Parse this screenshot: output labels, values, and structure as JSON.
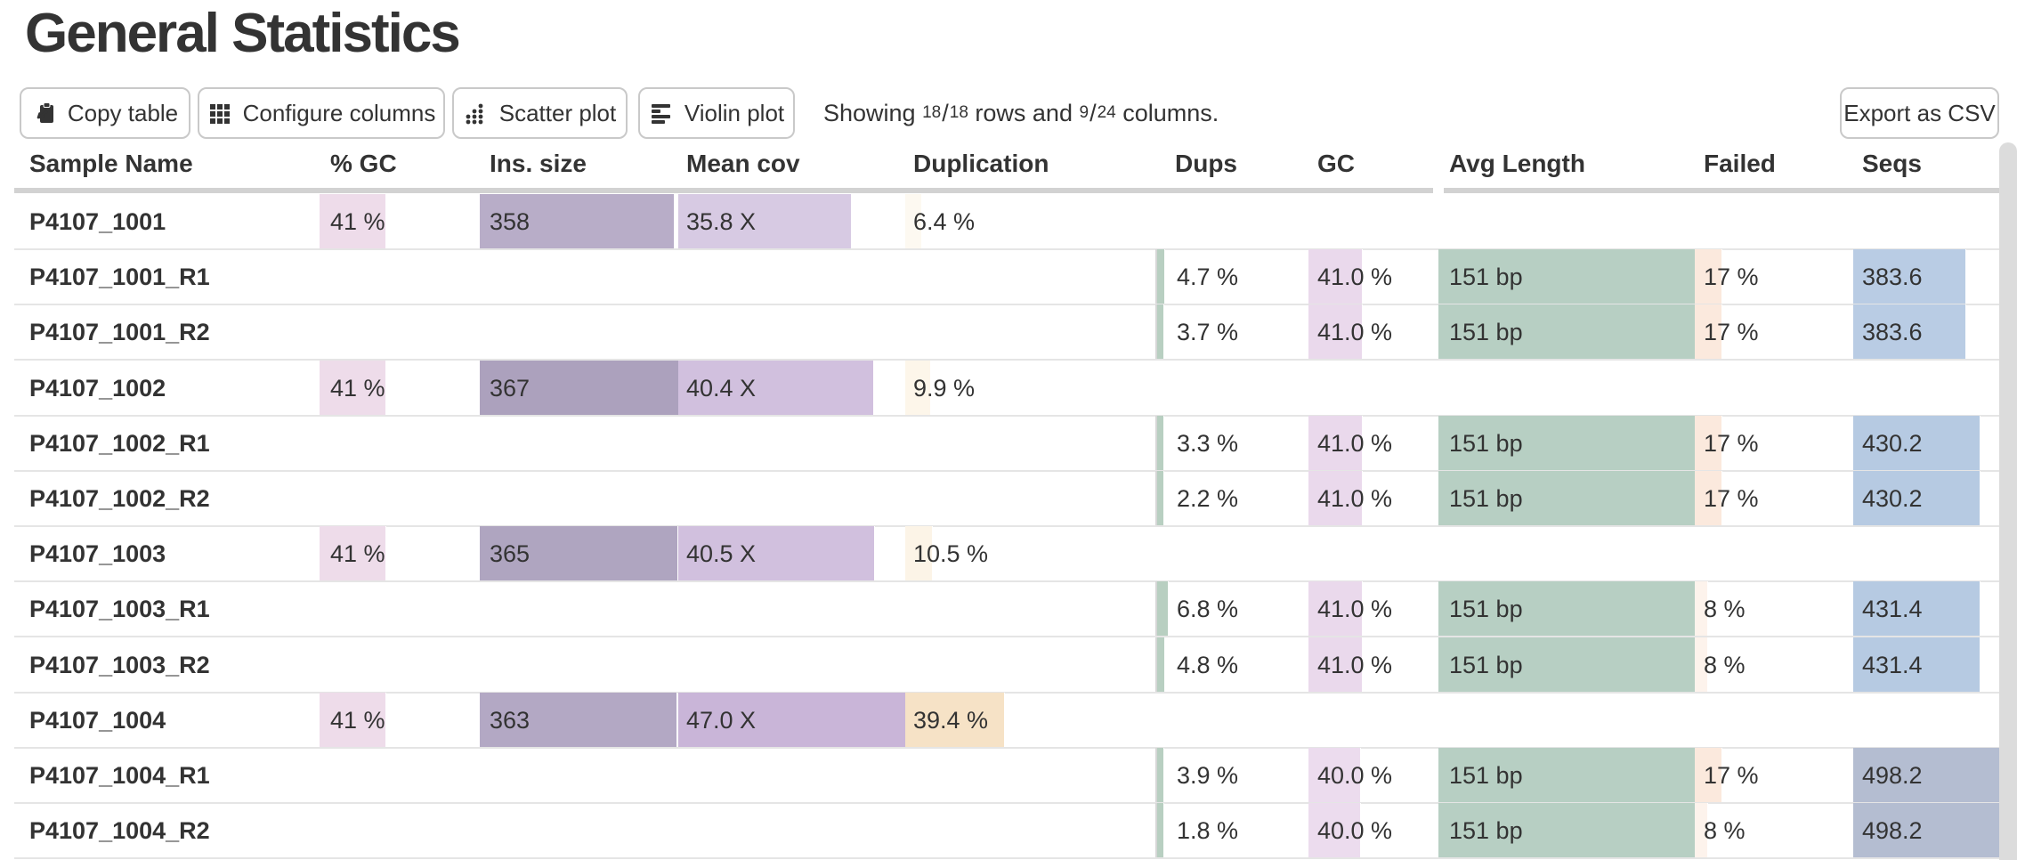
{
  "title": "General Statistics",
  "toolbar": {
    "buttons": [
      {
        "label": "Copy table",
        "icon": "clipboard-icon"
      },
      {
        "label": "Configure columns",
        "icon": "grid-icon"
      },
      {
        "label": "Scatter plot",
        "icon": "scatter-icon"
      },
      {
        "label": "Violin plot",
        "icon": "violin-icon"
      }
    ],
    "export_label": "Export as CSV",
    "showing": {
      "prefix": "Showing",
      "rows_shown": "18",
      "rows_total": "18",
      "middle": "rows and",
      "cols_shown": "9",
      "cols_total": "24",
      "suffix": "columns."
    }
  },
  "table": {
    "columns": [
      {
        "id": "sample",
        "label": "Sample Name"
      },
      {
        "id": "gc_pct",
        "label": "% GC"
      },
      {
        "id": "ins_size",
        "label": "Ins. size"
      },
      {
        "id": "mean_cov",
        "label": "Mean cov"
      },
      {
        "id": "duplication",
        "label": "Duplication"
      },
      {
        "id": "dups",
        "label": "Dups"
      },
      {
        "id": "gc",
        "label": "GC"
      },
      {
        "id": "avg_length",
        "label": "Avg Length"
      },
      {
        "id": "failed",
        "label": "Failed"
      },
      {
        "id": "seqs",
        "label": "Seqs"
      }
    ],
    "rows": [
      {
        "sample": "P4107_1001",
        "cells": {
          "gc_pct": {
            "text": "41 %",
            "frac": 0.41,
            "color": "#eedcea"
          },
          "ins_size": {
            "text": "358",
            "frac": 0.9755,
            "color": "#b8adc8"
          },
          "mean_cov": {
            "text": "35.8 X",
            "frac": 0.7617,
            "color": "#d7cae3"
          },
          "duplication": {
            "text": "6.4 %",
            "frac": 0.064,
            "color": "#fdf9f1"
          }
        }
      },
      {
        "sample": "P4107_1001_R1",
        "cells": {
          "dups": {
            "text": "4.7 %",
            "frac": 0.047,
            "color": "#b8cfc1"
          },
          "gc": {
            "text": "41.0 %",
            "frac": 0.41,
            "color": "#ead9ec"
          },
          "avg_length": {
            "text": "151 bp",
            "frac": 1.0,
            "color": "#b7cfc3"
          },
          "failed": {
            "text": "17 %",
            "frac": 0.17,
            "color": "#fbe9dd"
          },
          "seqs": {
            "text": "383.6",
            "frac": 0.77,
            "color": "#b9cce4"
          }
        }
      },
      {
        "sample": "P4107_1001_R2",
        "cells": {
          "dups": {
            "text": "3.7 %",
            "frac": 0.037,
            "color": "#b8cfc1"
          },
          "gc": {
            "text": "41.0 %",
            "frac": 0.41,
            "color": "#ead9ec"
          },
          "avg_length": {
            "text": "151 bp",
            "frac": 1.0,
            "color": "#b7cfc3"
          },
          "failed": {
            "text": "17 %",
            "frac": 0.17,
            "color": "#fbe9dd"
          },
          "seqs": {
            "text": "383.6",
            "frac": 0.77,
            "color": "#b9cce4"
          }
        }
      },
      {
        "sample": "P4107_1002",
        "cells": {
          "gc_pct": {
            "text": "41 %",
            "frac": 0.41,
            "color": "#eedcea"
          },
          "ins_size": {
            "text": "367",
            "frac": 1.0,
            "color": "#aca1bd"
          },
          "mean_cov": {
            "text": "40.4 X",
            "frac": 0.8596,
            "color": "#d1c0de"
          },
          "duplication": {
            "text": "9.9 %",
            "frac": 0.099,
            "color": "#fdf6ea"
          }
        }
      },
      {
        "sample": "P4107_1002_R1",
        "cells": {
          "dups": {
            "text": "3.3 %",
            "frac": 0.033,
            "color": "#b8cfc1"
          },
          "gc": {
            "text": "41.0 %",
            "frac": 0.41,
            "color": "#ead9ec"
          },
          "avg_length": {
            "text": "151 bp",
            "frac": 1.0,
            "color": "#b7cfc3"
          },
          "failed": {
            "text": "17 %",
            "frac": 0.17,
            "color": "#fbe9dd"
          },
          "seqs": {
            "text": "430.2",
            "frac": 0.8635,
            "color": "#b6cae2"
          }
        }
      },
      {
        "sample": "P4107_1002_R2",
        "cells": {
          "dups": {
            "text": "2.2 %",
            "frac": 0.022,
            "color": "#b8cfc1"
          },
          "gc": {
            "text": "41.0 %",
            "frac": 0.41,
            "color": "#ead9ec"
          },
          "avg_length": {
            "text": "151 bp",
            "frac": 1.0,
            "color": "#b7cfc3"
          },
          "failed": {
            "text": "17 %",
            "frac": 0.17,
            "color": "#fbe9dd"
          },
          "seqs": {
            "text": "430.2",
            "frac": 0.8635,
            "color": "#b6cae2"
          }
        }
      },
      {
        "sample": "P4107_1003",
        "cells": {
          "gc_pct": {
            "text": "41 %",
            "frac": 0.41,
            "color": "#eedcea"
          },
          "ins_size": {
            "text": "365",
            "frac": 0.9946,
            "color": "#afa5c0"
          },
          "mean_cov": {
            "text": "40.5 X",
            "frac": 0.8617,
            "color": "#d1c0de"
          },
          "duplication": {
            "text": "10.5 %",
            "frac": 0.105,
            "color": "#fcf4e7"
          }
        }
      },
      {
        "sample": "P4107_1003_R1",
        "cells": {
          "dups": {
            "text": "6.8 %",
            "frac": 0.068,
            "color": "#b8cfc1"
          },
          "gc": {
            "text": "41.0 %",
            "frac": 0.41,
            "color": "#ead9ec"
          },
          "avg_length": {
            "text": "151 bp",
            "frac": 1.0,
            "color": "#b7cfc3"
          },
          "failed": {
            "text": "8 %",
            "frac": 0.08,
            "color": "#fdf3ec"
          },
          "seqs": {
            "text": "431.4",
            "frac": 0.8659,
            "color": "#b6cae2"
          }
        }
      },
      {
        "sample": "P4107_1003_R2",
        "cells": {
          "dups": {
            "text": "4.8 %",
            "frac": 0.048,
            "color": "#b8cfc1"
          },
          "gc": {
            "text": "41.0 %",
            "frac": 0.41,
            "color": "#ead9ec"
          },
          "avg_length": {
            "text": "151 bp",
            "frac": 1.0,
            "color": "#b7cfc3"
          },
          "failed": {
            "text": "8 %",
            "frac": 0.08,
            "color": "#fdf3ec"
          },
          "seqs": {
            "text": "431.4",
            "frac": 0.8659,
            "color": "#b6cae2"
          }
        }
      },
      {
        "sample": "P4107_1004",
        "cells": {
          "gc_pct": {
            "text": "41 %",
            "frac": 0.41,
            "color": "#eedcea"
          },
          "ins_size": {
            "text": "363",
            "frac": 0.989,
            "color": "#b3a8c4"
          },
          "mean_cov": {
            "text": "47.0 X",
            "frac": 1.0,
            "color": "#c9b5d8"
          },
          "duplication": {
            "text": "39.4 %",
            "frac": 0.394,
            "color": "#f6e2c6"
          }
        }
      },
      {
        "sample": "P4107_1004_R1",
        "cells": {
          "dups": {
            "text": "3.9 %",
            "frac": 0.039,
            "color": "#b8cfc1"
          },
          "gc": {
            "text": "40.0 %",
            "frac": 0.4,
            "color": "#ecdcee"
          },
          "avg_length": {
            "text": "151 bp",
            "frac": 1.0,
            "color": "#b7cfc3"
          },
          "failed": {
            "text": "17 %",
            "frac": 0.17,
            "color": "#fbe9dd"
          },
          "seqs": {
            "text": "498.2",
            "frac": 1.0,
            "color": "#b4bdd1"
          }
        }
      },
      {
        "sample": "P4107_1004_R2",
        "cells": {
          "dups": {
            "text": "1.8 %",
            "frac": 0.018,
            "color": "#b8cfc1"
          },
          "gc": {
            "text": "40.0 %",
            "frac": 0.4,
            "color": "#ecdcee"
          },
          "avg_length": {
            "text": "151 bp",
            "frac": 1.0,
            "color": "#b7cfc3"
          },
          "failed": {
            "text": "8 %",
            "frac": 0.08,
            "color": "#fdf3ec"
          },
          "seqs": {
            "text": "498.2",
            "frac": 1.0,
            "color": "#b4bdd1"
          }
        }
      }
    ]
  },
  "scrollbar_color": "#dcdcdc"
}
